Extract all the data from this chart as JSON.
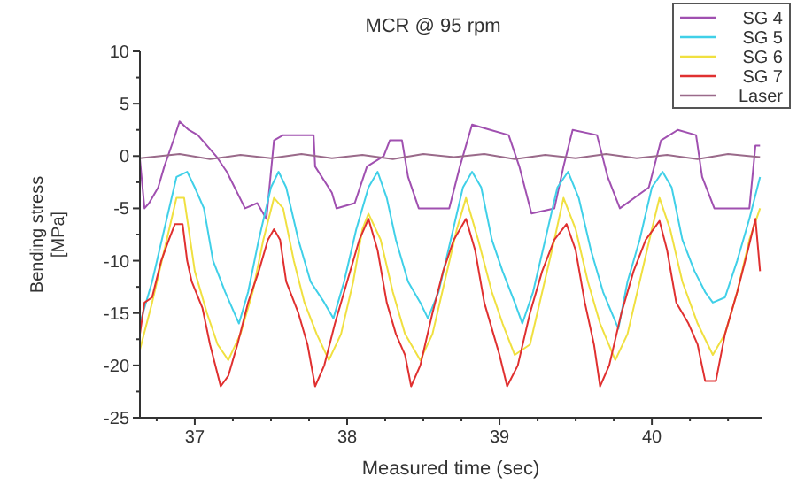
{
  "chart_data": {
    "type": "line",
    "title": "MCR @ 95 rpm",
    "xlabel": "Measured time (sec)",
    "ylabel": "Bending stress [MPa]",
    "xlim": [
      36.64,
      40.72
    ],
    "ylim": [
      -25,
      10
    ],
    "xticks": [
      {
        "value": 36.75,
        "label": null
      },
      37,
      {
        "value": 37.25,
        "label": null
      },
      {
        "value": 37.5,
        "label": null
      },
      {
        "value": 37.75,
        "label": null
      },
      38,
      {
        "value": 38.25,
        "label": null
      },
      {
        "value": 38.5,
        "label": null
      },
      {
        "value": 38.75,
        "label": null
      },
      39,
      {
        "value": 39.25,
        "label": null
      },
      {
        "value": 39.5,
        "label": null
      },
      {
        "value": 39.75,
        "label": null
      },
      40,
      {
        "value": 40.25,
        "label": null
      },
      {
        "value": 40.5,
        "label": null
      }
    ],
    "yticks": [
      -25,
      {
        "value": -22.5,
        "label": null
      },
      -20,
      {
        "value": -17.5,
        "label": null
      },
      -15,
      {
        "value": -12.5,
        "label": null
      },
      -10,
      {
        "value": -7.5,
        "label": null
      },
      -5,
      {
        "value": -2.5,
        "label": null
      },
      0,
      {
        "value": 2.5,
        "label": null
      },
      5,
      {
        "value": 7.5,
        "label": null
      },
      10
    ],
    "grid": false,
    "legend": "top right",
    "marker": "none",
    "line_style": "solid",
    "series": [
      {
        "name": "SG 4",
        "color": "#a050b0",
        "x": [
          36.64,
          36.67,
          36.7,
          36.76,
          36.8,
          36.86,
          36.9,
          36.96,
          37.02,
          37.14,
          37.21,
          37.33,
          37.41,
          37.47,
          37.52,
          37.58,
          37.78,
          37.79,
          37.9,
          37.93,
          38.05,
          38.13,
          38.24,
          38.28,
          38.36,
          38.4,
          38.47,
          38.67,
          38.74,
          38.82,
          38.94,
          39.06,
          39.13,
          39.21,
          39.36,
          39.42,
          39.48,
          39.64,
          39.71,
          39.79,
          39.98,
          40.06,
          40.17,
          40.29,
          40.33,
          40.41,
          40.64,
          40.68,
          40.71
        ],
        "values": [
          -0.3,
          -5,
          -4.5,
          -3,
          -1,
          1.5,
          3.3,
          2.5,
          2,
          0,
          -1.5,
          -5,
          -4.5,
          -6,
          1.5,
          2,
          2,
          -1,
          -3.5,
          -5,
          -4.5,
          -1,
          0,
          1.5,
          1.5,
          -2,
          -5,
          -5,
          -1,
          3,
          2.5,
          2,
          -1,
          -5.5,
          -5,
          -1,
          2.5,
          2,
          -2,
          -5,
          -3,
          1.5,
          2.5,
          2,
          -2,
          -5,
          -5,
          1,
          1
        ]
      },
      {
        "name": "SG 5",
        "color": "#40d0e8",
        "x": [
          36.64,
          36.72,
          36.8,
          36.88,
          36.95,
          37.0,
          37.06,
          37.12,
          37.2,
          37.29,
          37.35,
          37.42,
          37.5,
          37.55,
          37.6,
          37.68,
          37.76,
          37.85,
          37.91,
          37.98,
          38.06,
          38.14,
          38.2,
          38.26,
          38.32,
          38.4,
          38.48,
          38.53,
          38.6,
          38.68,
          38.76,
          38.82,
          38.88,
          38.95,
          39.02,
          39.1,
          39.15,
          39.22,
          39.3,
          39.38,
          39.45,
          39.52,
          39.6,
          39.68,
          39.78,
          39.84,
          39.92,
          40.0,
          40.07,
          40.13,
          40.2,
          40.28,
          40.35,
          40.4,
          40.48,
          40.56,
          40.64,
          40.71
        ],
        "values": [
          -16,
          -12,
          -7,
          -2,
          -1.5,
          -3,
          -5,
          -10,
          -13,
          -16,
          -13,
          -8,
          -3,
          -1.5,
          -3,
          -8,
          -12,
          -14,
          -15.5,
          -12,
          -7,
          -3,
          -1.5,
          -4,
          -8,
          -12,
          -14,
          -15.5,
          -13,
          -8,
          -3,
          -1.5,
          -3,
          -8,
          -11,
          -14,
          -16,
          -13,
          -8,
          -3,
          -1.5,
          -4,
          -9,
          -13,
          -16.5,
          -12,
          -8,
          -3,
          -1.5,
          -3,
          -8,
          -11,
          -13,
          -14,
          -13.5,
          -10,
          -6,
          -2
        ]
      },
      {
        "name": "SG 6",
        "color": "#f0e040",
        "x": [
          36.64,
          36.72,
          36.8,
          36.88,
          36.93,
          37.0,
          37.08,
          37.15,
          37.22,
          37.3,
          37.38,
          37.45,
          37.52,
          37.58,
          37.65,
          37.72,
          37.8,
          37.88,
          37.96,
          38.04,
          38.1,
          38.14,
          38.22,
          38.3,
          38.38,
          38.48,
          38.56,
          38.64,
          38.72,
          38.78,
          38.86,
          38.95,
          39.02,
          39.1,
          39.2,
          39.28,
          39.36,
          39.42,
          39.5,
          39.58,
          39.66,
          39.76,
          39.84,
          39.92,
          40.0,
          40.05,
          40.12,
          40.2,
          40.3,
          40.4,
          40.48,
          40.56,
          40.64,
          40.71
        ],
        "values": [
          -18.5,
          -14,
          -9,
          -4,
          -4,
          -11,
          -15,
          -18,
          -19.5,
          -17,
          -13,
          -8,
          -4,
          -5,
          -10,
          -14,
          -17,
          -19.5,
          -17,
          -12,
          -7,
          -5.5,
          -8,
          -13,
          -17,
          -19.5,
          -17,
          -12,
          -7,
          -4,
          -8,
          -13,
          -16,
          -19,
          -18,
          -13,
          -8,
          -4,
          -7,
          -12,
          -16,
          -19.5,
          -17,
          -12,
          -7,
          -4,
          -7,
          -12,
          -16,
          -19,
          -17,
          -13,
          -8,
          -5
        ]
      },
      {
        "name": "SG 7",
        "color": "#e03030",
        "x": [
          36.64,
          36.67,
          36.72,
          36.78,
          36.83,
          36.87,
          36.92,
          36.95,
          36.98,
          37.05,
          37.1,
          37.17,
          37.22,
          37.28,
          37.35,
          37.42,
          37.48,
          37.52,
          37.56,
          37.6,
          37.68,
          37.74,
          37.79,
          37.85,
          37.92,
          38.0,
          38.08,
          38.14,
          38.2,
          38.26,
          38.32,
          38.38,
          38.42,
          38.48,
          38.56,
          38.63,
          38.7,
          38.78,
          38.84,
          38.9,
          38.96,
          39.0,
          39.05,
          39.12,
          39.2,
          39.28,
          39.36,
          39.44,
          39.5,
          39.56,
          39.62,
          39.66,
          39.72,
          39.8,
          39.88,
          39.96,
          40.05,
          40.1,
          40.16,
          40.24,
          40.3,
          40.35,
          40.42,
          40.48,
          40.56,
          40.63,
          40.68,
          40.71
        ],
        "values": [
          -17,
          -14,
          -13.5,
          -10,
          -8,
          -6.5,
          -6.5,
          -10,
          -12,
          -14.5,
          -18,
          -22,
          -21,
          -18,
          -14,
          -11,
          -8,
          -7,
          -8,
          -12,
          -15,
          -18,
          -22,
          -20,
          -16,
          -12,
          -8,
          -6,
          -9,
          -14,
          -17,
          -19,
          -22,
          -20,
          -15,
          -11,
          -8,
          -6,
          -9,
          -14,
          -17,
          -19,
          -22,
          -20,
          -15,
          -11,
          -8,
          -6.5,
          -9,
          -14,
          -18,
          -22,
          -20,
          -15,
          -11,
          -8,
          -6.2,
          -9,
          -14,
          -16,
          -18,
          -21.5,
          -21.5,
          -17,
          -13,
          -9,
          -6,
          -11
        ]
      },
      {
        "name": "Laser",
        "color": "#9a6a8a",
        "x": [
          36.64,
          36.9,
          37.1,
          37.3,
          37.5,
          37.7,
          37.9,
          38.1,
          38.3,
          38.5,
          38.7,
          38.9,
          39.1,
          39.3,
          39.5,
          39.7,
          39.9,
          40.1,
          40.3,
          40.5,
          40.71
        ],
        "values": [
          -0.2,
          0.2,
          -0.3,
          0.1,
          -0.2,
          0.2,
          -0.2,
          0.1,
          -0.3,
          0.2,
          -0.1,
          0.2,
          -0.3,
          0.1,
          -0.2,
          0.2,
          -0.2,
          0.1,
          -0.3,
          0.2,
          -0.1
        ]
      }
    ]
  }
}
